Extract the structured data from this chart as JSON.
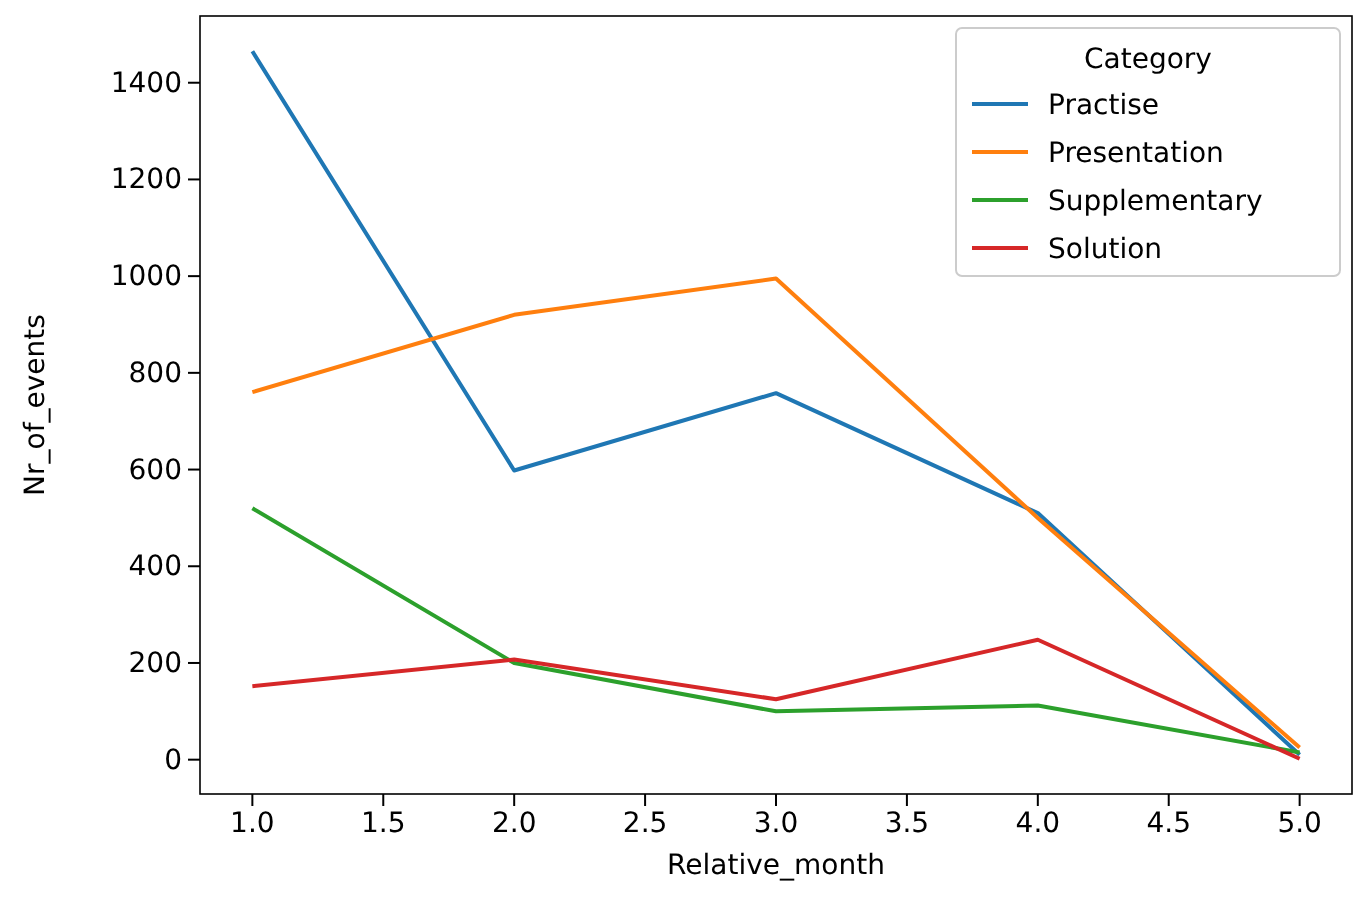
{
  "chart_data": {
    "type": "line",
    "xlabel": "Relative_month",
    "ylabel": "Nr_of_events",
    "legend_title": "Category",
    "legend": "top right",
    "grid": false,
    "x": [
      1,
      2,
      3,
      4,
      5
    ],
    "xlim": [
      0.8,
      5.2
    ],
    "xticks": [
      {
        "value": 1,
        "label": "1.0"
      },
      {
        "value": 1.5,
        "label": "1.5"
      },
      {
        "value": 2,
        "label": "2.0"
      },
      {
        "value": 2.5,
        "label": "2.5"
      },
      {
        "value": 3,
        "label": "3.0"
      },
      {
        "value": 3.5,
        "label": "3.5"
      },
      {
        "value": 4,
        "label": "4.0"
      },
      {
        "value": 4.5,
        "label": "4.5"
      },
      {
        "value": 5,
        "label": "5.0"
      }
    ],
    "ylim": [
      -71,
      1538
    ],
    "yticks": [
      0,
      200,
      400,
      600,
      800,
      1000,
      1200,
      1400
    ],
    "series": [
      {
        "name": "Practise",
        "color": "#1f77b4",
        "values": [
          1465,
          598,
          758,
          510,
          10
        ]
      },
      {
        "name": "Presentation",
        "color": "#ff7f0e",
        "values": [
          760,
          920,
          995,
          500,
          25
        ]
      },
      {
        "name": "Supplementary",
        "color": "#2ca02c",
        "values": [
          520,
          200,
          100,
          112,
          15
        ]
      },
      {
        "name": "Solution",
        "color": "#d62728",
        "values": [
          152,
          207,
          125,
          248,
          2
        ]
      }
    ]
  }
}
